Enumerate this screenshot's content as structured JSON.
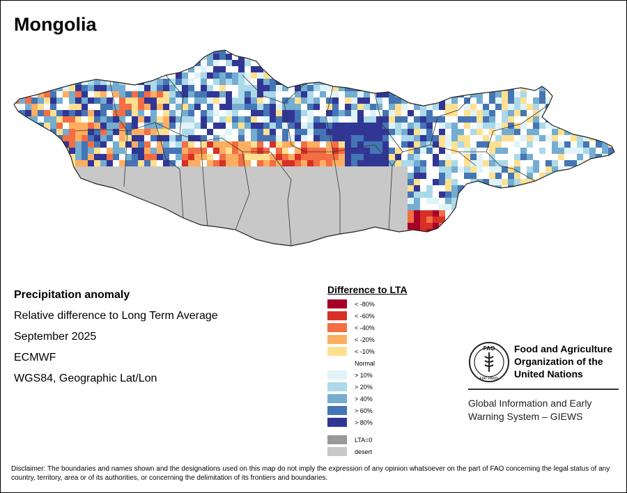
{
  "title": "Mongolia",
  "info": {
    "heading": "Precipitation anomaly",
    "subtitle": "Relative difference to Long Term Average",
    "date": "September 2025",
    "source": "ECMWF",
    "projection": "WGS84, Geographic Lat/Lon"
  },
  "legend": {
    "title": "Difference to LTA",
    "classes": [
      {
        "label": "< -80%",
        "color": "#a50026"
      },
      {
        "label": "< -60%",
        "color": "#d73027"
      },
      {
        "label": "< -40%",
        "color": "#f46d43"
      },
      {
        "label": "< -20%",
        "color": "#fdae61"
      },
      {
        "label": "< -10%",
        "color": "#fee090"
      },
      {
        "label": "Normal",
        "color": "#ffffff"
      },
      {
        "label": "> 10%",
        "color": "#e0f3f8"
      },
      {
        "label": "> 20%",
        "color": "#abd9e9"
      },
      {
        "label": "> 40%",
        "color": "#74add1"
      },
      {
        "label": "> 60%",
        "color": "#4575b4"
      },
      {
        "label": "> 80%",
        "color": "#313695"
      }
    ],
    "lta_zero": {
      "label": "LTA=0",
      "color": "#999999"
    },
    "desert": {
      "label": "desert",
      "color": "#c8c8c8"
    }
  },
  "fao": {
    "name_line1": "Food and Agriculture",
    "name_line2": "Organization of the",
    "name_line3": "United Nations",
    "giews_line1": "Global Information and Early",
    "giews_line2": "Warning System – GIEWS",
    "logo_text": "FAO",
    "logo_motto": "FIAT PANIS"
  },
  "disclaimer": "Disclaimer: The boundaries and names shown and the designations used on this map do not imply the expression of any opinion whatsoever on the part of FAO concerning the legal status of any country, territory, area or of its authorities, or concerning the delimitation of its frontiers and boundaries."
}
